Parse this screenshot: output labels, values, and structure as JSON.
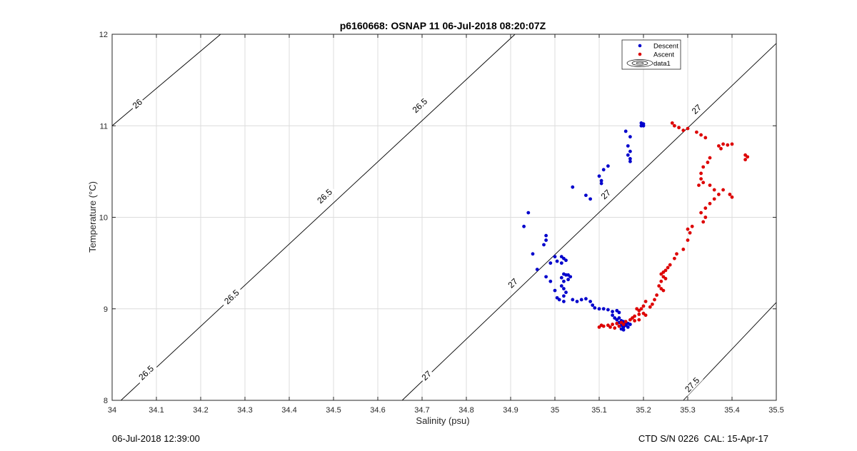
{
  "chart_data": {
    "type": "scatter",
    "title": "p6160668: OSNAP 11 06-Jul-2018 08:20:07Z",
    "xlabel": "Salinity (psu)",
    "ylabel": "Temperature (°C)",
    "xlim": [
      34,
      35.5
    ],
    "ylim": [
      8,
      12
    ],
    "xticks": [
      "34",
      "34.1",
      "34.2",
      "34.3",
      "34.4",
      "34.5",
      "34.6",
      "34.7",
      "34.8",
      "34.9",
      "35",
      "35.1",
      "35.2",
      "35.3",
      "35.4",
      "35.5"
    ],
    "yticks": [
      "8",
      "9",
      "10",
      "11",
      "12"
    ],
    "grid": true,
    "legend_position": "top-right",
    "legend": [
      "Descent",
      "Ascent",
      "data1"
    ],
    "colors": {
      "descent": "#0000cc",
      "ascent": "#dd0000",
      "contour": "#000000",
      "grid": "#dcdcdc"
    },
    "density_contours": [
      {
        "sigma": 26,
        "label": "26",
        "points": [
          [
            34.0,
            11.0
          ],
          [
            34.245,
            12.0
          ]
        ],
        "label_at": [
          34.057,
          11.24
        ]
      },
      {
        "sigma": 26.5,
        "label": "26.5",
        "points": [
          [
            34.02,
            8.0
          ],
          [
            34.91,
            12.0
          ]
        ],
        "label_at": [
          34.077,
          8.3
        ]
      },
      {
        "sigma": 26.5,
        "label": "26.5",
        "label_at": [
          34.27,
          9.13
        ]
      },
      {
        "sigma": 26.5,
        "label": "26.5",
        "label_at": [
          34.48,
          10.23
        ]
      },
      {
        "sigma": 26.5,
        "label": "26.5",
        "label_at": [
          34.695,
          11.22
        ]
      },
      {
        "sigma": 27,
        "label": "27",
        "points": [
          [
            34.655,
            8.0
          ],
          [
            35.5,
            11.9
          ]
        ],
        "label_at": [
          34.71,
          8.27
        ]
      },
      {
        "sigma": 27,
        "label": "27",
        "label_at": [
          34.905,
          9.28
        ]
      },
      {
        "sigma": 27,
        "label": "27",
        "label_at": [
          35.115,
          10.25
        ]
      },
      {
        "sigma": 27,
        "label": "27",
        "label_at": [
          35.32,
          11.18
        ]
      },
      {
        "sigma": 27.5,
        "label": "27.5",
        "points": [
          [
            35.29,
            8.0
          ],
          [
            35.5,
            9.07
          ]
        ],
        "label_at": [
          35.31,
          8.17
        ]
      }
    ],
    "series": [
      {
        "name": "Descent",
        "points": [
          [
            35.195,
            11.03
          ],
          [
            35.2,
            11.02
          ],
          [
            35.195,
            11.0
          ],
          [
            35.2,
            11.0
          ],
          [
            35.16,
            10.94
          ],
          [
            35.17,
            10.88
          ],
          [
            35.165,
            10.78
          ],
          [
            35.17,
            10.72
          ],
          [
            35.165,
            10.68
          ],
          [
            35.17,
            10.64
          ],
          [
            35.17,
            10.61
          ],
          [
            35.12,
            10.56
          ],
          [
            35.11,
            10.52
          ],
          [
            35.1,
            10.45
          ],
          [
            35.105,
            10.4
          ],
          [
            35.105,
            10.37
          ],
          [
            35.04,
            10.33
          ],
          [
            35.07,
            10.24
          ],
          [
            35.08,
            10.2
          ],
          [
            34.94,
            10.05
          ],
          [
            34.93,
            9.9
          ],
          [
            34.98,
            9.8
          ],
          [
            34.98,
            9.75
          ],
          [
            34.975,
            9.7
          ],
          [
            34.95,
            9.6
          ],
          [
            35.0,
            9.57
          ],
          [
            35.005,
            9.52
          ],
          [
            34.99,
            9.5
          ],
          [
            35.015,
            9.57
          ],
          [
            35.02,
            9.55
          ],
          [
            35.025,
            9.53
          ],
          [
            35.015,
            9.5
          ],
          [
            34.96,
            9.43
          ],
          [
            34.98,
            9.35
          ],
          [
            34.99,
            9.3
          ],
          [
            35.02,
            9.38
          ],
          [
            35.025,
            9.37
          ],
          [
            35.03,
            9.37
          ],
          [
            35.035,
            9.35
          ],
          [
            35.03,
            9.32
          ],
          [
            35.015,
            9.34
          ],
          [
            35.02,
            9.3
          ],
          [
            35.015,
            9.25
          ],
          [
            35.02,
            9.22
          ],
          [
            35.025,
            9.18
          ],
          [
            35.02,
            9.14
          ],
          [
            35.0,
            9.2
          ],
          [
            35.005,
            9.12
          ],
          [
            35.01,
            9.1
          ],
          [
            35.02,
            9.08
          ],
          [
            35.04,
            9.1
          ],
          [
            35.05,
            9.08
          ],
          [
            35.06,
            9.1
          ],
          [
            35.07,
            9.11
          ],
          [
            35.08,
            9.08
          ],
          [
            35.085,
            9.04
          ],
          [
            35.09,
            9.01
          ],
          [
            35.1,
            9.0
          ],
          [
            35.11,
            9.0
          ],
          [
            35.12,
            8.99
          ],
          [
            35.13,
            8.97
          ],
          [
            35.14,
            8.98
          ],
          [
            35.145,
            8.96
          ],
          [
            35.13,
            8.93
          ],
          [
            35.135,
            8.9
          ],
          [
            35.14,
            8.88
          ],
          [
            35.145,
            8.9
          ],
          [
            35.15,
            8.87
          ],
          [
            35.155,
            8.86
          ],
          [
            35.16,
            8.85
          ],
          [
            35.165,
            8.84
          ],
          [
            35.17,
            8.83
          ],
          [
            35.15,
            8.82
          ],
          [
            35.155,
            8.8
          ],
          [
            35.15,
            8.78
          ],
          [
            35.155,
            8.77
          ],
          [
            35.16,
            8.82
          ],
          [
            35.165,
            8.8
          ],
          [
            35.14,
            8.84
          ],
          [
            35.145,
            8.85
          ]
        ]
      },
      {
        "name": "Ascent",
        "points": [
          [
            35.265,
            11.03
          ],
          [
            35.27,
            11.0
          ],
          [
            35.28,
            10.98
          ],
          [
            35.3,
            10.97
          ],
          [
            35.29,
            10.95
          ],
          [
            35.32,
            10.93
          ],
          [
            35.33,
            10.9
          ],
          [
            35.34,
            10.87
          ],
          [
            35.38,
            10.8
          ],
          [
            35.39,
            10.79
          ],
          [
            35.4,
            10.8
          ],
          [
            35.37,
            10.78
          ],
          [
            35.375,
            10.75
          ],
          [
            35.43,
            10.68
          ],
          [
            35.435,
            10.66
          ],
          [
            35.43,
            10.63
          ],
          [
            35.35,
            10.65
          ],
          [
            35.345,
            10.6
          ],
          [
            35.335,
            10.55
          ],
          [
            35.33,
            10.48
          ],
          [
            35.33,
            10.42
          ],
          [
            35.335,
            10.38
          ],
          [
            35.325,
            10.35
          ],
          [
            35.38,
            10.3
          ],
          [
            35.395,
            10.25
          ],
          [
            35.4,
            10.22
          ],
          [
            35.35,
            10.35
          ],
          [
            35.36,
            10.3
          ],
          [
            35.37,
            10.25
          ],
          [
            35.36,
            10.2
          ],
          [
            35.35,
            10.15
          ],
          [
            35.34,
            10.1
          ],
          [
            35.33,
            10.05
          ],
          [
            35.34,
            10.0
          ],
          [
            35.335,
            9.95
          ],
          [
            35.31,
            9.9
          ],
          [
            35.3,
            9.87
          ],
          [
            35.305,
            9.83
          ],
          [
            35.3,
            9.75
          ],
          [
            35.29,
            9.65
          ],
          [
            35.275,
            9.6
          ],
          [
            35.27,
            9.55
          ],
          [
            35.26,
            9.48
          ],
          [
            35.255,
            9.45
          ],
          [
            35.25,
            9.42
          ],
          [
            35.245,
            9.4
          ],
          [
            35.24,
            9.38
          ],
          [
            35.245,
            9.35
          ],
          [
            35.25,
            9.33
          ],
          [
            35.24,
            9.3
          ],
          [
            35.235,
            9.25
          ],
          [
            35.24,
            9.22
          ],
          [
            35.245,
            9.2
          ],
          [
            35.23,
            9.15
          ],
          [
            35.225,
            9.1
          ],
          [
            35.22,
            9.05
          ],
          [
            35.215,
            9.02
          ],
          [
            35.205,
            9.08
          ],
          [
            35.2,
            9.03
          ],
          [
            35.195,
            9.0
          ],
          [
            35.19,
            8.98
          ],
          [
            35.185,
            9.0
          ],
          [
            35.2,
            8.95
          ],
          [
            35.205,
            8.93
          ],
          [
            35.19,
            8.94
          ],
          [
            35.18,
            8.92
          ],
          [
            35.175,
            8.9
          ],
          [
            35.17,
            8.88
          ],
          [
            35.18,
            8.87
          ],
          [
            35.19,
            8.88
          ],
          [
            35.16,
            8.86
          ],
          [
            35.15,
            8.85
          ],
          [
            35.14,
            8.84
          ],
          [
            35.13,
            8.83
          ],
          [
            35.12,
            8.82
          ],
          [
            35.11,
            8.81
          ],
          [
            35.1,
            8.8
          ],
          [
            35.105,
            8.82
          ],
          [
            35.125,
            8.8
          ],
          [
            35.135,
            8.79
          ],
          [
            35.145,
            8.81
          ],
          [
            35.155,
            8.83
          ]
        ]
      }
    ]
  },
  "footer": {
    "left": "06-Jul-2018 12:39:00",
    "right": "CTD S/N 0226  CAL: 15-Apr-17"
  }
}
